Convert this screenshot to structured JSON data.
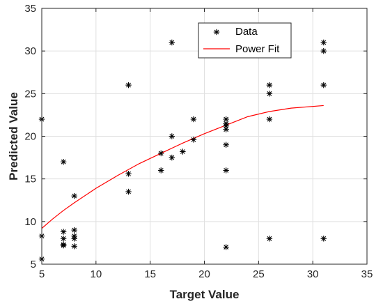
{
  "chart_data": {
    "type": "scatter",
    "xlabel": "Target Value",
    "ylabel": "Predicted Value",
    "xlim": [
      5,
      35
    ],
    "ylim": [
      5,
      35
    ],
    "xticks": [
      5,
      10,
      15,
      20,
      25,
      30,
      35
    ],
    "yticks": [
      5,
      10,
      15,
      20,
      25,
      30,
      35
    ],
    "grid": true,
    "legend_placement": "top-right-inside",
    "colors": {
      "data": "#000000",
      "fit": "#ff0000",
      "grid": "#e0e0e0",
      "axis": "#262626"
    },
    "series": [
      {
        "name": "Data",
        "marker": "asterisk",
        "points": [
          [
            5,
            22
          ],
          [
            5,
            8.3
          ],
          [
            5,
            5.6
          ],
          [
            7,
            17
          ],
          [
            7,
            8.8
          ],
          [
            7,
            8.0
          ],
          [
            7,
            7.3
          ],
          [
            7,
            7.2
          ],
          [
            8,
            13
          ],
          [
            8,
            9.0
          ],
          [
            8,
            8.3
          ],
          [
            8,
            8.0
          ],
          [
            8,
            7.1
          ],
          [
            13,
            26
          ],
          [
            13,
            15.6
          ],
          [
            13,
            13.5
          ],
          [
            16,
            18.0
          ],
          [
            16,
            16.0
          ],
          [
            17,
            31
          ],
          [
            17,
            20.0
          ],
          [
            17,
            17.5
          ],
          [
            18,
            18.2
          ],
          [
            19,
            22
          ],
          [
            19,
            19.6
          ],
          [
            22,
            22
          ],
          [
            22,
            21.5
          ],
          [
            22,
            21.2
          ],
          [
            22,
            20.8
          ],
          [
            22,
            19.0
          ],
          [
            22,
            16.0
          ],
          [
            22,
            7.0
          ],
          [
            26,
            26
          ],
          [
            26,
            25
          ],
          [
            26,
            22
          ],
          [
            26,
            8
          ],
          [
            31,
            31
          ],
          [
            31,
            30
          ],
          [
            31,
            26
          ],
          [
            31,
            8
          ]
        ]
      },
      {
        "name": "Power Fit",
        "marker": "line",
        "points": [
          [
            5,
            9.2
          ],
          [
            6,
            10.3
          ],
          [
            7,
            11.3
          ],
          [
            8,
            12.2
          ],
          [
            10,
            13.9
          ],
          [
            12,
            15.4
          ],
          [
            14,
            16.8
          ],
          [
            16,
            18.0
          ],
          [
            18,
            19.2
          ],
          [
            20,
            20.3
          ],
          [
            22,
            21.3
          ],
          [
            24,
            22.3
          ],
          [
            26,
            22.9
          ],
          [
            28,
            23.3
          ],
          [
            31,
            23.6
          ]
        ]
      }
    ]
  }
}
